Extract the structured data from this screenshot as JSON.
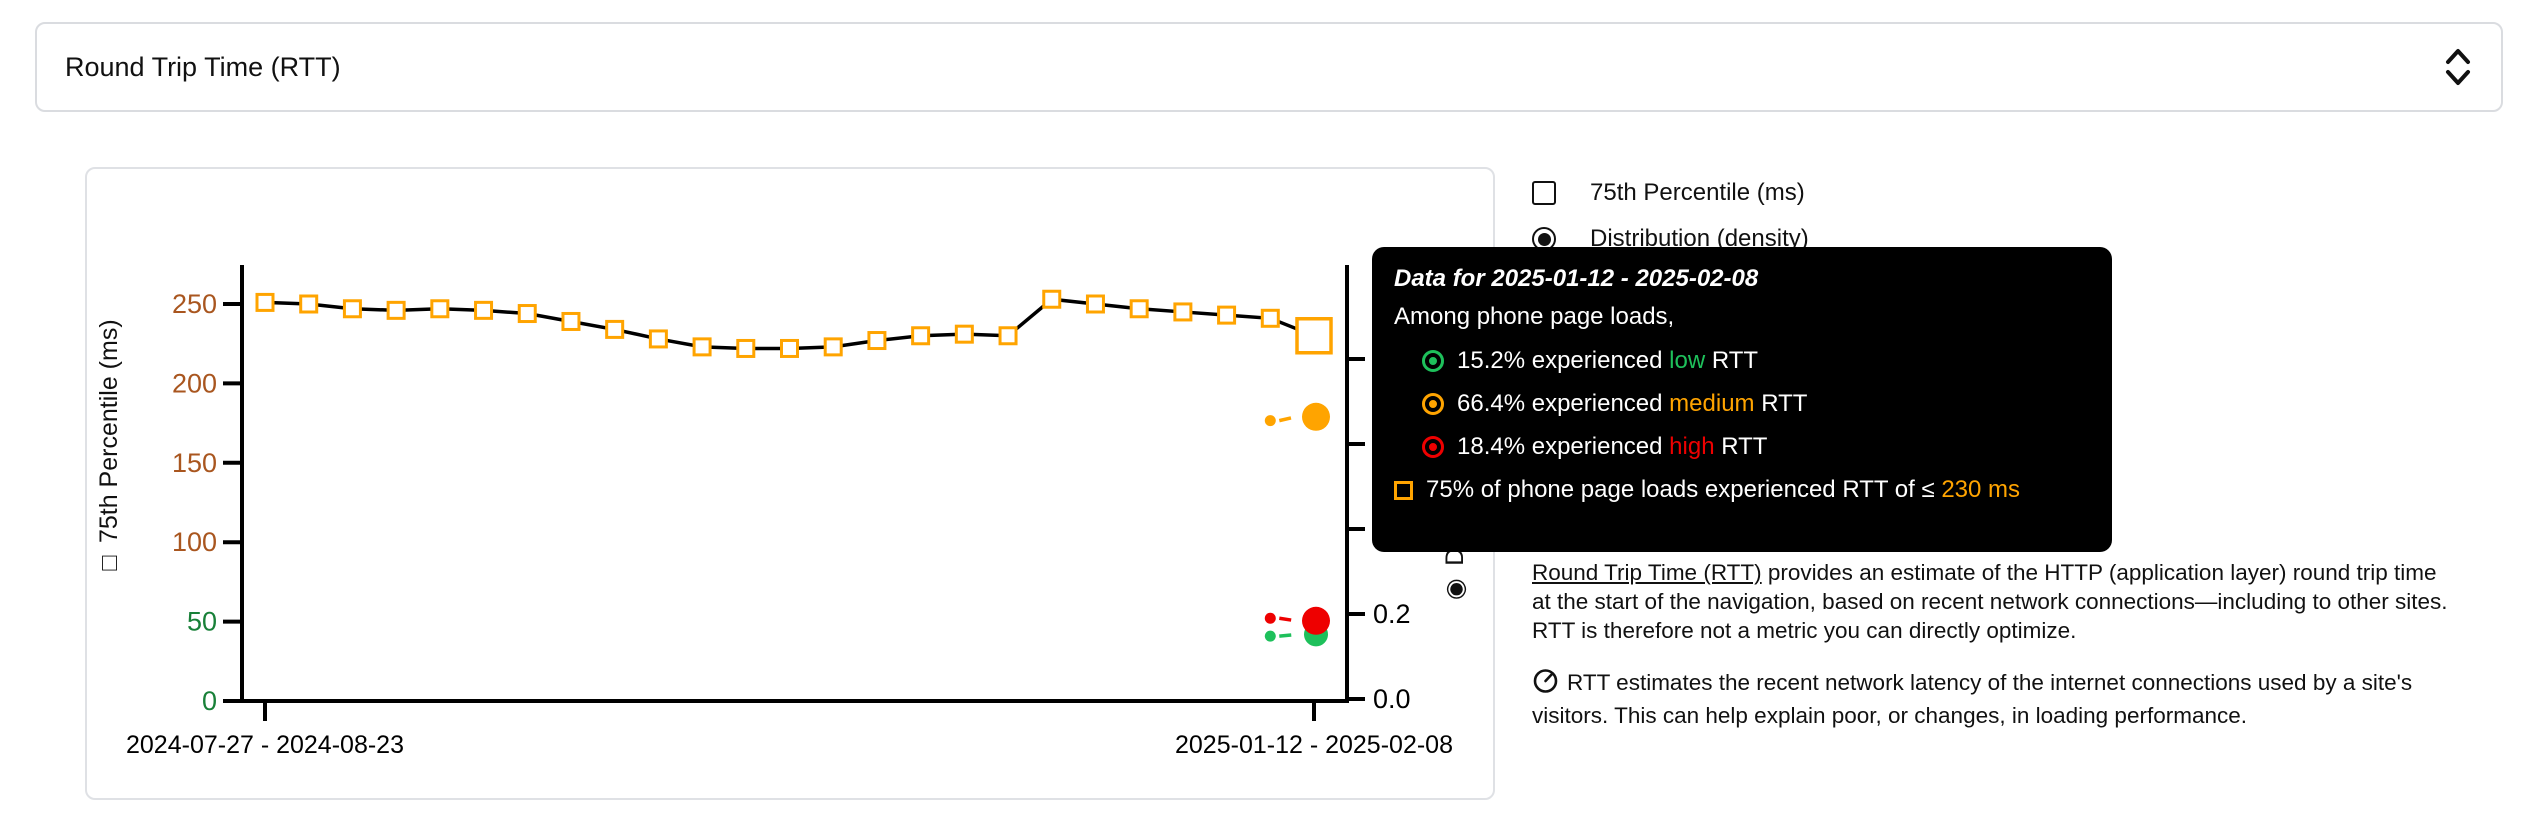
{
  "select": {
    "value": "Round Trip Time (RTT)",
    "chevron_icon": "unfold-more-icon"
  },
  "legend": {
    "percentile": {
      "label": "75th Percentile (ms)",
      "checked": false
    },
    "distribution": {
      "label": "Distribution (density)",
      "selected": true
    }
  },
  "tooltip": {
    "title": "Data for 2025-01-12 - 2025-02-08",
    "subtitle": "Among phone page loads,",
    "rows": [
      {
        "level": "good",
        "pct": "15.2%",
        "mid": "experienced",
        "level_word": "low",
        "tail": "RTT",
        "color": "#1ec05b"
      },
      {
        "level": "med",
        "pct": "66.4%",
        "mid": "experienced",
        "level_word": "medium",
        "tail": "RTT",
        "color": "#ffa400"
      },
      {
        "level": "poor",
        "pct": "18.4%",
        "mid": "experienced",
        "level_word": "high",
        "tail": "RTT",
        "color": "#ee0000"
      }
    ],
    "threshold_prefix": "75% of phone page loads experienced RTT of ≤",
    "threshold_value": "230 ms"
  },
  "colors": {
    "good": "#1ec05b",
    "medium": "#ffa400",
    "poor": "#ee0000",
    "line": "#000000",
    "tick_low_green": "#188038",
    "tick_mid_brown": "#a9561f"
  },
  "chart_data": {
    "type": "line",
    "title": "",
    "xlabel": "",
    "x_tick_labels": [
      "2024-07-27 - 2024-08-23",
      "2025-01-12 - 2025-02-08"
    ],
    "left_axis": {
      "title": "75th Percentile (ms)",
      "title_prefix_glyph": "□",
      "ticks": [
        0,
        50,
        100,
        150,
        200,
        250
      ],
      "range": [
        0,
        275
      ],
      "good_max": 75
    },
    "right_axis": {
      "title": "Distribution (density)",
      "title_prefix_glyph": "◉",
      "ticks": [
        0.0,
        0.2,
        0.4,
        0.6,
        0.8
      ],
      "visible_tick_labels": [
        "0.0",
        "0.2"
      ],
      "range": [
        0,
        1.02
      ]
    },
    "percentile_series": {
      "name": "75th Percentile (ms)",
      "marker": "open-square",
      "marker_color": "#ffa400",
      "line_color": "#000000",
      "values": [
        251,
        250,
        247,
        246,
        247,
        246,
        244,
        239,
        234,
        228,
        223,
        222,
        222,
        223,
        227,
        230,
        231,
        230,
        253,
        250,
        247,
        245,
        243,
        241,
        230
      ],
      "latest_value": 230
    },
    "density_series": [
      {
        "name": "low",
        "color": "#1ec05b",
        "prev": 0.148,
        "latest": 0.152,
        "big_r": 12
      },
      {
        "name": "medium",
        "color": "#ffa400",
        "prev": 0.655,
        "latest": 0.664,
        "big_r": 14
      },
      {
        "name": "high",
        "color": "#ee0000",
        "prev": 0.19,
        "latest": 0.184,
        "big_r": 14
      }
    ],
    "selected_period_index": 24,
    "legend_position": "right",
    "grid": false
  },
  "description": {
    "para1_link": "Round Trip Time (RTT)",
    "para1_rest": " provides an estimate of the HTTP (application layer) round trip time at the start of the navigation, based on recent network connections—including to other sites. RTT is therefore not a metric you can directly optimize.",
    "para2_icon": "gauge-icon",
    "para2": "RTT estimates the recent network latency of the internet connections used by a site's visitors. This can help explain poor, or changes, in loading performance."
  }
}
